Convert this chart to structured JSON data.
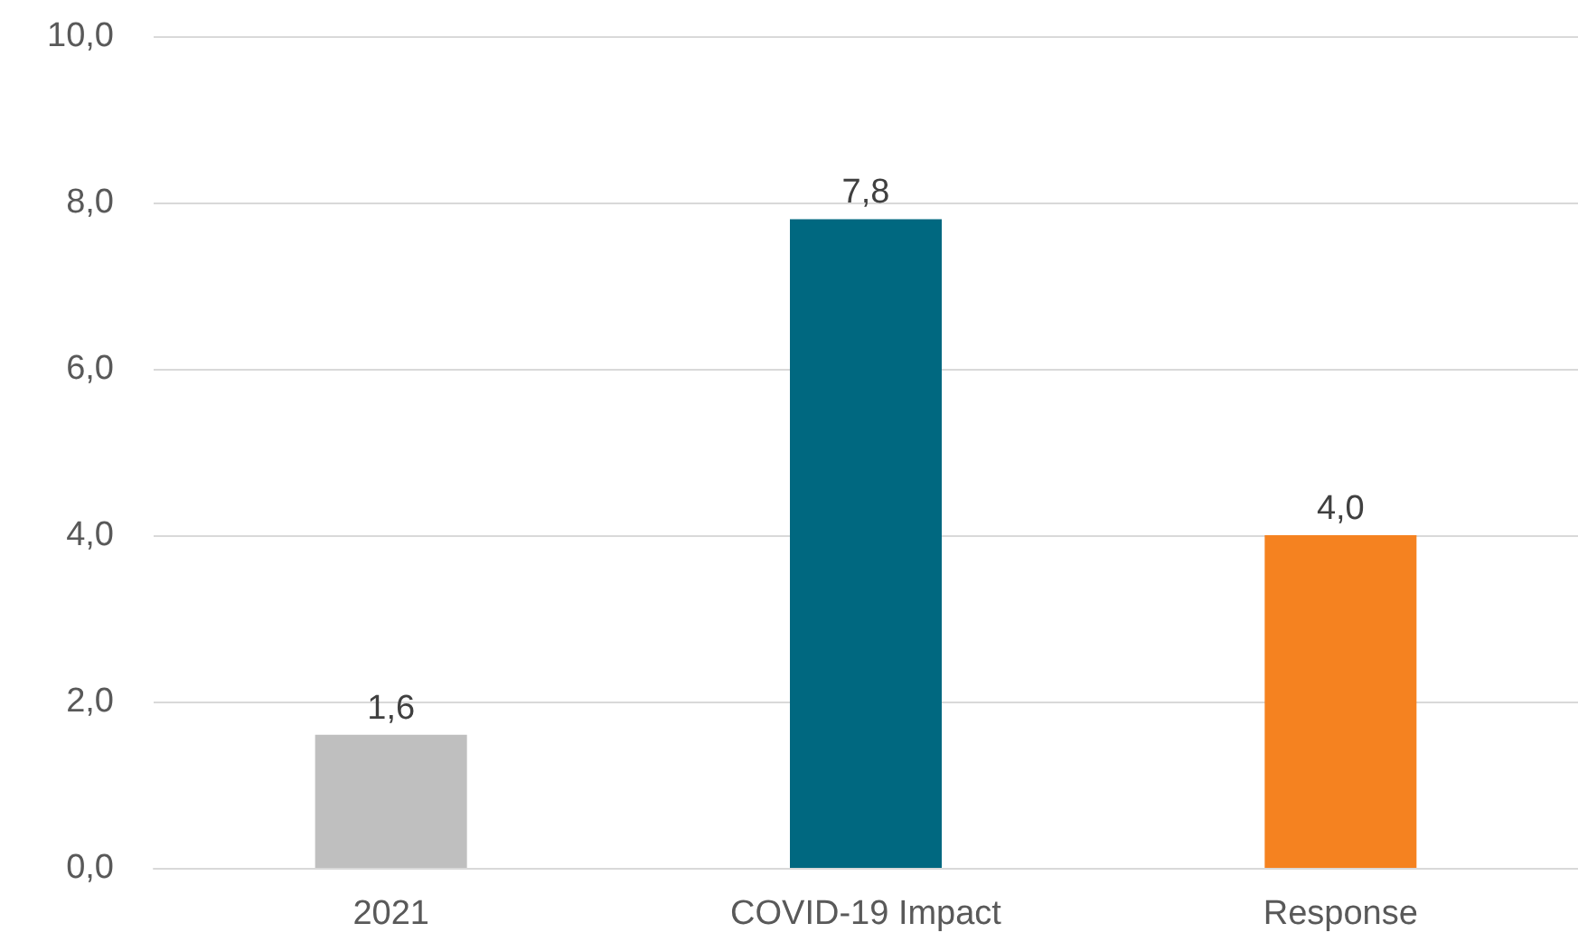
{
  "chart_data": {
    "type": "bar",
    "categories": [
      "2021",
      "COVID-19 Impact",
      "Response"
    ],
    "values": [
      1.6,
      7.8,
      4.0
    ],
    "colors": [
      "#bfbfbf",
      "#006880",
      "#f58220"
    ],
    "ylim": [
      0,
      10
    ],
    "yticks": [
      {
        "value": 0,
        "label": "0,0"
      },
      {
        "value": 2,
        "label": "2,0"
      },
      {
        "value": 4,
        "label": "4,0"
      },
      {
        "value": 6,
        "label": "6,0"
      },
      {
        "value": 8,
        "label": "8,0"
      },
      {
        "value": 10,
        "label": "10,0"
      }
    ],
    "value_labels": [
      "1,6",
      "7,8",
      "4,0"
    ],
    "grid": "y"
  }
}
